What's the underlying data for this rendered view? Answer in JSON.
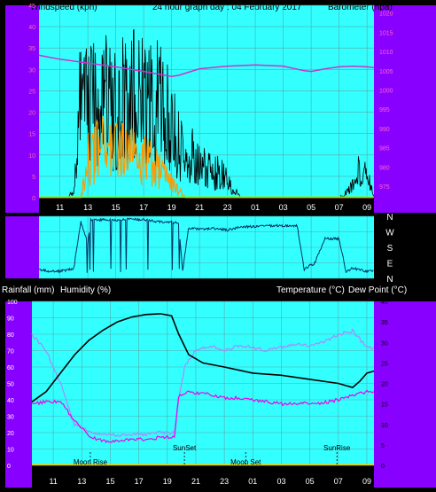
{
  "header": {
    "left_label": "Windspeed (kph)",
    "center_title": "24 hour graph day : 04 February 2017",
    "right_label": "Barometer (hpa)"
  },
  "labels": {
    "rain_label": "Rainfall (mm)",
    "humidity_label": "Humidity (%)",
    "temp_label": "Temperature (°C)",
    "dew_label": "Dew Point (°C)"
  },
  "x_ticks": [
    "11",
    "13",
    "15",
    "17",
    "19",
    "21",
    "23",
    "01",
    "03",
    "05",
    "07",
    "09"
  ],
  "events": [
    {
      "label": "Moon Rise",
      "hour": 13.6
    },
    {
      "label": "SunSet",
      "hour": 20.2
    },
    {
      "label": "Moon Set",
      "hour": 0.5
    },
    {
      "label": "SunRise",
      "hour": 6.9
    }
  ],
  "colors": {
    "plot_bg": "#33ffff",
    "side_bg": "#8800ff",
    "wind": "#000000",
    "gust": "#ff9900",
    "avg": "#66ff33",
    "baro": "#cc33cc",
    "temp": "#000000",
    "humidity": "#aa88ff",
    "dew": "#ee00ee",
    "direction": "#003366"
  },
  "chart_data": [
    {
      "type": "line",
      "name": "wind",
      "x_start_hour": 9.5,
      "x_end_hour": 33.5,
      "y_left_ticks": [
        0,
        5,
        10,
        15,
        20,
        25,
        30,
        35,
        40,
        45
      ],
      "y_left_range": [
        0,
        45
      ],
      "y_right_ticks": [
        975,
        980,
        985,
        990,
        995,
        1000,
        1005,
        1010,
        1015,
        1020
      ],
      "y_right_range": [
        972,
        1022
      ],
      "windspeed_profile": [
        [
          9.5,
          0
        ],
        [
          11.5,
          0
        ],
        [
          12.0,
          2
        ],
        [
          12.5,
          28
        ],
        [
          13,
          25
        ],
        [
          14,
          26
        ],
        [
          15,
          24
        ],
        [
          16,
          26
        ],
        [
          17,
          27
        ],
        [
          18,
          25
        ],
        [
          19,
          20
        ],
        [
          19.5,
          15
        ],
        [
          20,
          8
        ],
        [
          20.5,
          12
        ],
        [
          21,
          10
        ],
        [
          21.5,
          8
        ],
        [
          22,
          6
        ],
        [
          22.5,
          8
        ],
        [
          23,
          4
        ],
        [
          23.5,
          2
        ],
        [
          24,
          0
        ],
        [
          25,
          0
        ],
        [
          26,
          0
        ],
        [
          27,
          0
        ],
        [
          28,
          0
        ],
        [
          29,
          0
        ],
        [
          30,
          0
        ],
        [
          31,
          0
        ],
        [
          32,
          3
        ],
        [
          32.5,
          8
        ],
        [
          33,
          6
        ],
        [
          33.5,
          0
        ]
      ],
      "gust_profile": [
        [
          9.5,
          0
        ],
        [
          12.5,
          0
        ],
        [
          13,
          10
        ],
        [
          14,
          14
        ],
        [
          15,
          12
        ],
        [
          16,
          12
        ],
        [
          17,
          10
        ],
        [
          18,
          8
        ],
        [
          19,
          4
        ],
        [
          19.5,
          2
        ],
        [
          20,
          0
        ],
        [
          33.5,
          0
        ]
      ],
      "barometer": [
        [
          9.5,
          1009
        ],
        [
          11,
          1008
        ],
        [
          13,
          1007
        ],
        [
          15,
          1006
        ],
        [
          17,
          1004.8
        ],
        [
          19,
          1003.5
        ],
        [
          19.5,
          1003.8
        ],
        [
          21,
          1005.5
        ],
        [
          23,
          1006.2
        ],
        [
          25,
          1006.5
        ],
        [
          27,
          1006.2
        ],
        [
          28.5,
          1005
        ],
        [
          29,
          1004.8
        ],
        [
          30,
          1005.5
        ],
        [
          31,
          1006
        ],
        [
          32,
          1006.2
        ],
        [
          33,
          1006
        ],
        [
          33.5,
          1005.8
        ]
      ]
    },
    {
      "type": "line",
      "name": "wind-direction",
      "y_labels": [
        "N",
        "W",
        "S",
        "E",
        "N"
      ],
      "y_ticks": [
        0,
        90,
        180,
        270,
        360
      ],
      "y_range": [
        0,
        360
      ],
      "direction": [
        [
          9.5,
          50
        ],
        [
          10.5,
          40
        ],
        [
          11.5,
          45
        ],
        [
          12.0,
          60
        ],
        [
          12.5,
          330
        ],
        [
          13,
          200
        ],
        [
          13.2,
          340
        ],
        [
          14,
          340
        ],
        [
          15,
          335
        ],
        [
          16,
          345
        ],
        [
          17,
          340
        ],
        [
          18,
          330
        ],
        [
          19,
          325
        ],
        [
          19.5,
          320
        ],
        [
          19.8,
          40
        ],
        [
          20.2,
          290
        ],
        [
          21,
          285
        ],
        [
          22,
          290
        ],
        [
          23,
          280
        ],
        [
          24,
          300
        ],
        [
          25,
          300
        ],
        [
          26,
          305
        ],
        [
          27,
          305
        ],
        [
          28,
          305
        ],
        [
          28.5,
          50
        ],
        [
          29,
          80
        ],
        [
          29.2,
          80
        ],
        [
          30,
          230
        ],
        [
          31,
          230
        ],
        [
          31.5,
          40
        ],
        [
          32,
          60
        ],
        [
          33,
          40
        ],
        [
          33.5,
          45
        ]
      ]
    },
    {
      "type": "line",
      "name": "temperature-humidity",
      "y_left_ticks": [
        0,
        10,
        20,
        30,
        40,
        50,
        60,
        70,
        80,
        90,
        100
      ],
      "y_left_range": [
        0,
        100
      ],
      "y_right_ticks": [
        0,
        5,
        10,
        15,
        20,
        25,
        30,
        35,
        40
      ],
      "y_right_range": [
        0,
        40
      ],
      "temperature": [
        [
          9.5,
          15.5
        ],
        [
          10.5,
          18
        ],
        [
          11.5,
          22.5
        ],
        [
          12.5,
          27
        ],
        [
          13.5,
          30.5
        ],
        [
          14.5,
          33
        ],
        [
          15.5,
          35
        ],
        [
          16.5,
          36.2
        ],
        [
          17.5,
          36.8
        ],
        [
          18.5,
          37
        ],
        [
          19.3,
          36.5
        ],
        [
          19.8,
          32
        ],
        [
          20.5,
          27
        ],
        [
          21.5,
          25
        ],
        [
          23,
          24
        ],
        [
          25,
          22.5
        ],
        [
          27,
          22
        ],
        [
          29,
          21
        ],
        [
          31,
          20
        ],
        [
          32,
          19
        ],
        [
          32.5,
          20.5
        ],
        [
          33,
          22.5
        ],
        [
          33.5,
          23
        ]
      ],
      "humidity": [
        [
          9.5,
          80
        ],
        [
          10.5,
          70
        ],
        [
          11.5,
          50
        ],
        [
          12.5,
          25
        ],
        [
          13.5,
          21
        ],
        [
          14.5,
          19
        ],
        [
          15.5,
          18.5
        ],
        [
          16.5,
          19
        ],
        [
          17.5,
          19
        ],
        [
          18.5,
          20
        ],
        [
          19.5,
          20
        ],
        [
          19.8,
          40
        ],
        [
          20.2,
          60
        ],
        [
          21,
          70
        ],
        [
          22,
          73
        ],
        [
          23,
          70
        ],
        [
          24,
          73
        ],
        [
          25,
          72
        ],
        [
          26,
          70
        ],
        [
          27,
          72
        ],
        [
          28,
          74
        ],
        [
          29,
          73
        ],
        [
          30,
          75
        ],
        [
          31,
          80
        ],
        [
          32,
          82
        ],
        [
          33,
          72
        ],
        [
          33.5,
          72
        ]
      ],
      "dew_point": [
        [
          9.5,
          15
        ],
        [
          10.5,
          15.5
        ],
        [
          11.5,
          15.5
        ],
        [
          12.5,
          11
        ],
        [
          13.5,
          7
        ],
        [
          14.5,
          6
        ],
        [
          15.5,
          6
        ],
        [
          16.5,
          6.5
        ],
        [
          17.5,
          6.3
        ],
        [
          18.5,
          6.8
        ],
        [
          19.5,
          7
        ],
        [
          19.8,
          17
        ],
        [
          20.5,
          18
        ],
        [
          21.5,
          17.5
        ],
        [
          22.5,
          17
        ],
        [
          23,
          16.5
        ],
        [
          24,
          16.5
        ],
        [
          25,
          16
        ],
        [
          26,
          15.5
        ],
        [
          27,
          15
        ],
        [
          28,
          15
        ],
        [
          29,
          15.2
        ],
        [
          30,
          15.3
        ],
        [
          31,
          16
        ],
        [
          32,
          17
        ],
        [
          33,
          18
        ],
        [
          33.5,
          18
        ]
      ]
    }
  ]
}
